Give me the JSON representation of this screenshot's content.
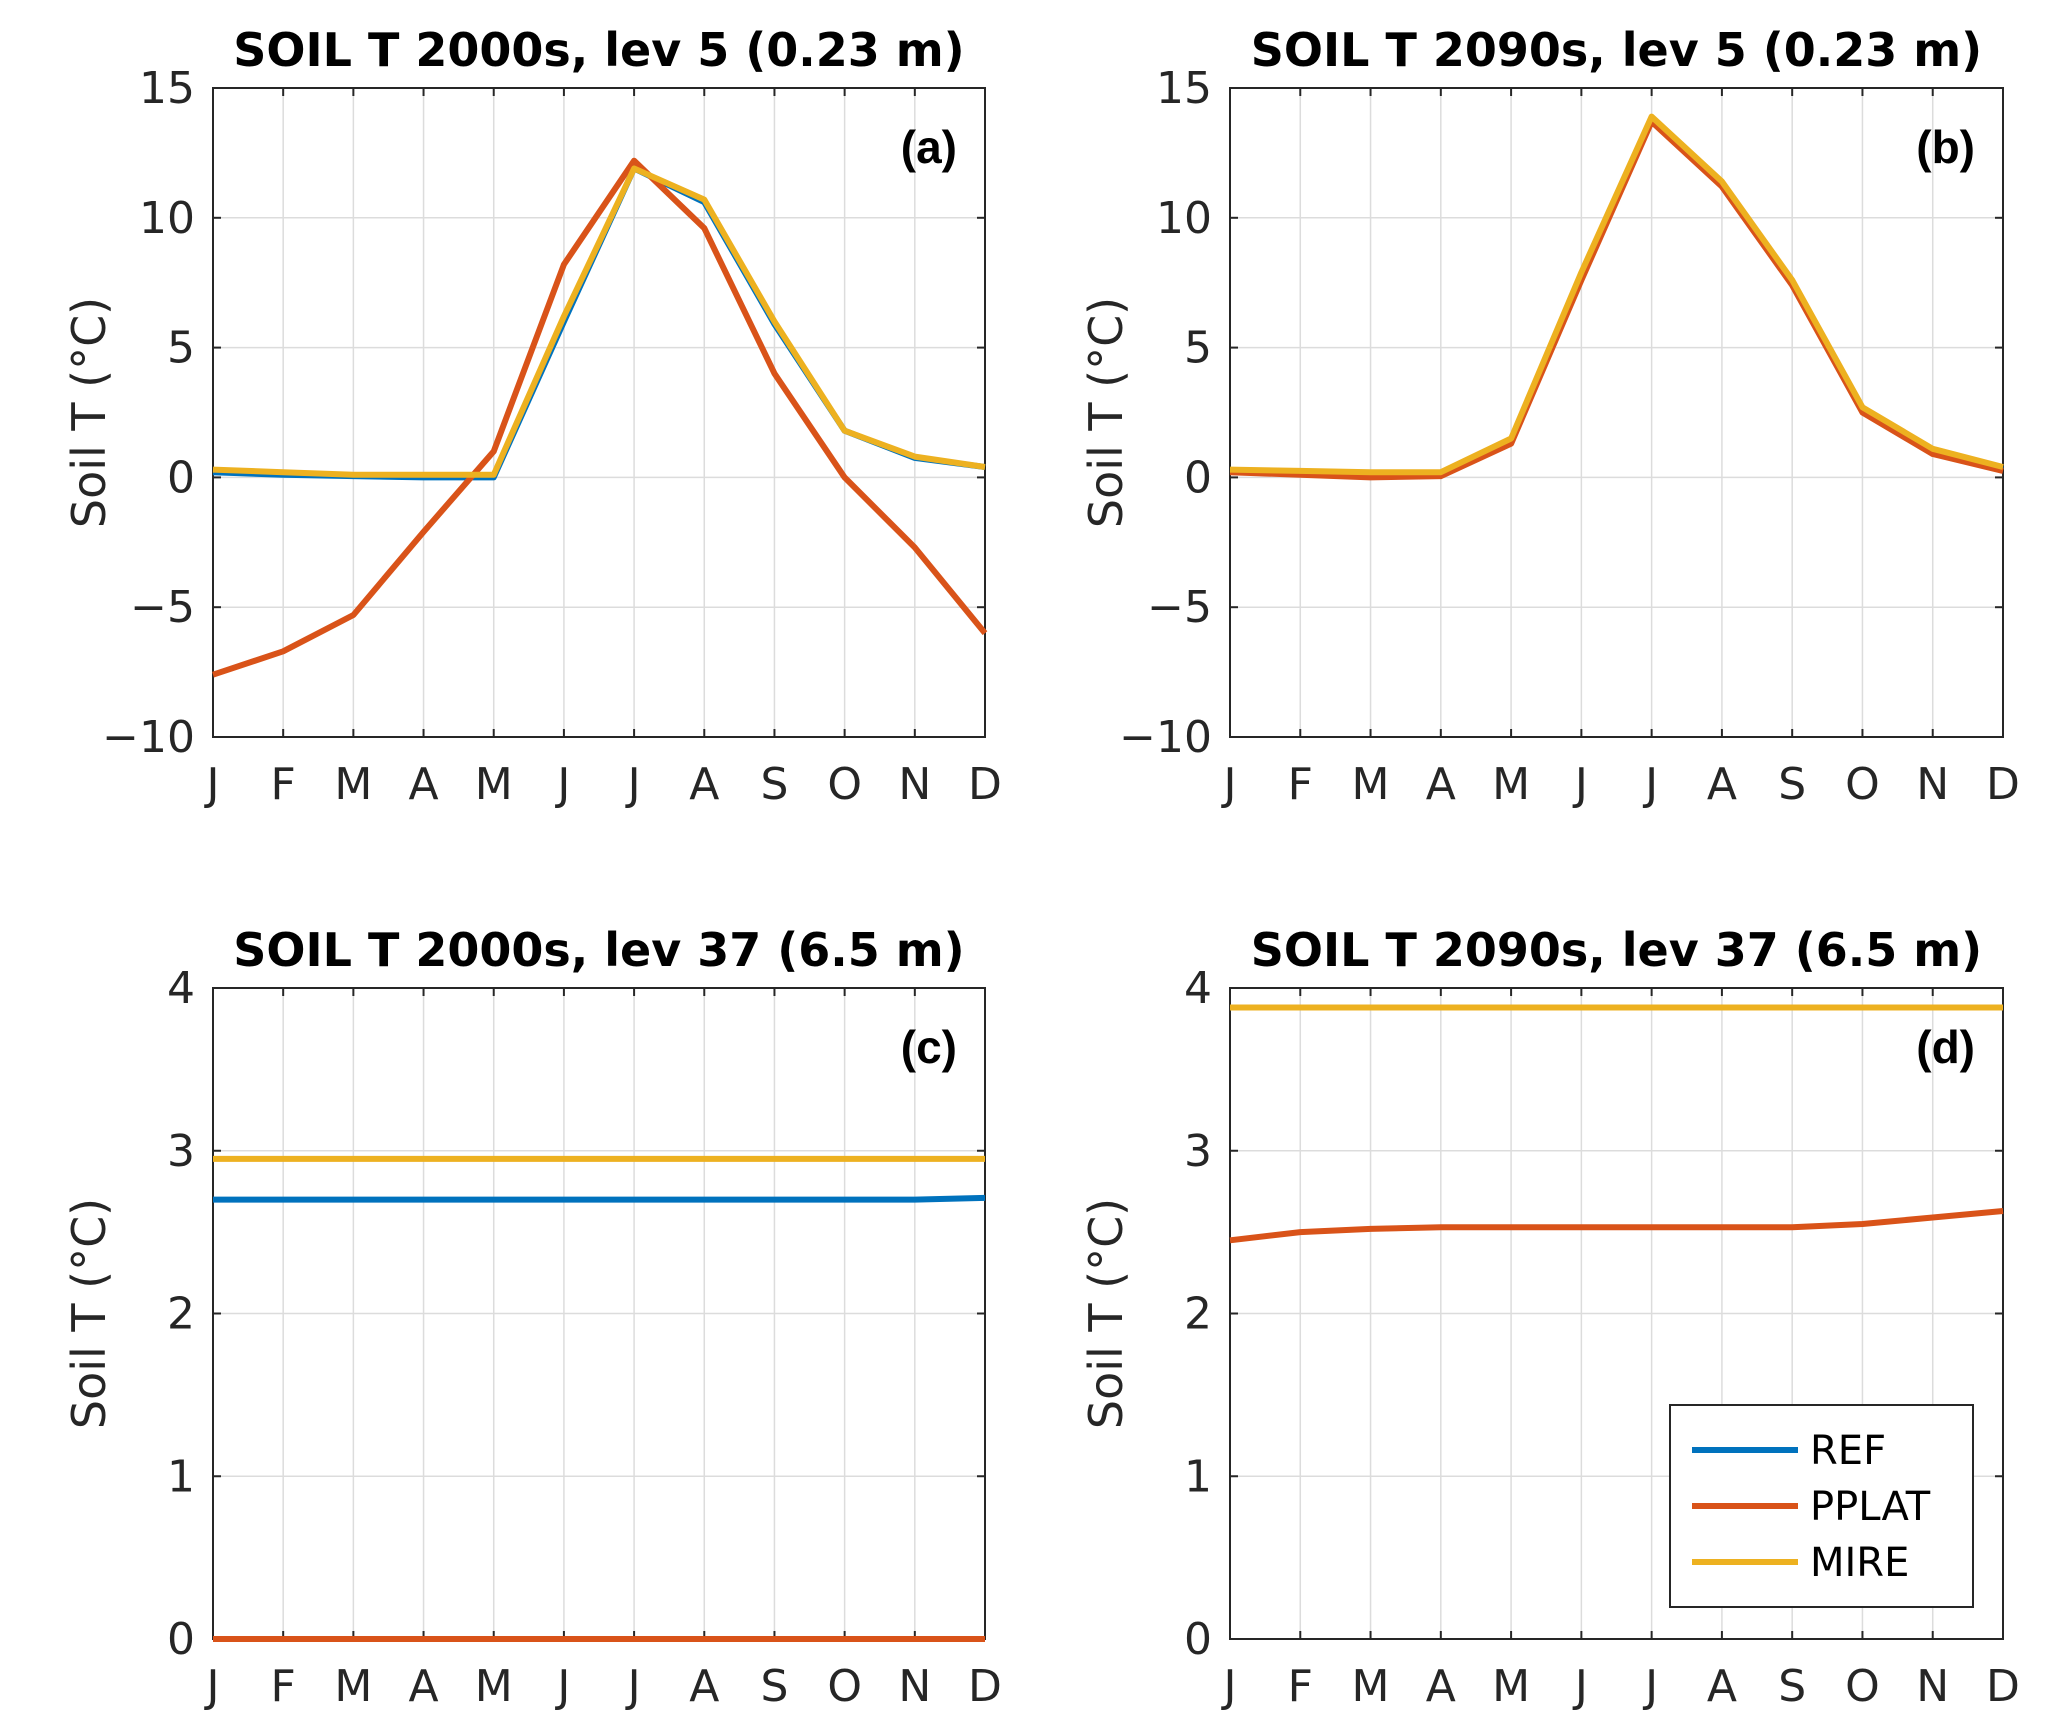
{
  "chart_data": [
    {
      "type": "line",
      "title": "SOIL T 2000s, lev 5 (0.23 m)",
      "panel_label": "(a)",
      "ylabel": "Soil T (°C)",
      "xlabel": "",
      "categories": [
        "J",
        "F",
        "M",
        "A",
        "M",
        "J",
        "J",
        "A",
        "S",
        "O",
        "N",
        "D"
      ],
      "ylim": [
        -10,
        15
      ],
      "yticks": [
        -10,
        -5,
        0,
        5,
        10,
        15
      ],
      "ytick_labels": [
        "−10",
        "−5",
        "0",
        "5",
        "10",
        "15"
      ],
      "grid": true,
      "series": [
        {
          "key": "REF",
          "color": "#0072BD",
          "values": [
            0.2,
            0.1,
            0.05,
            0.0,
            0.0,
            6.0,
            11.9,
            10.6,
            5.9,
            1.8,
            0.75,
            0.4
          ]
        },
        {
          "key": "PPLAT",
          "color": "#D95319",
          "values": [
            -7.6,
            -6.7,
            -5.3,
            -2.1,
            1.0,
            8.2,
            12.2,
            9.6,
            4.0,
            0.0,
            -2.7,
            -6.0
          ]
        },
        {
          "key": "MIRE",
          "color": "#EDB120",
          "values": [
            0.3,
            0.2,
            0.1,
            0.1,
            0.1,
            6.2,
            11.9,
            10.7,
            6.0,
            1.8,
            0.8,
            0.4
          ]
        }
      ]
    },
    {
      "type": "line",
      "title": "SOIL T 2090s, lev 5 (0.23 m)",
      "panel_label": "(b)",
      "ylabel": "Soil T (°C)",
      "xlabel": "",
      "categories": [
        "J",
        "F",
        "M",
        "A",
        "M",
        "J",
        "J",
        "A",
        "S",
        "O",
        "N",
        "D"
      ],
      "ylim": [
        -10,
        15
      ],
      "yticks": [
        -10,
        -5,
        0,
        5,
        10,
        15
      ],
      "ytick_labels": [
        "−10",
        "−5",
        "0",
        "5",
        "10",
        "15"
      ],
      "grid": true,
      "series": [
        {
          "key": "REF",
          "color": "#0072BD",
          "values": [
            0.25,
            0.2,
            0.15,
            0.15,
            1.4,
            7.8,
            13.8,
            11.3,
            7.5,
            2.6,
            1.0,
            0.3
          ]
        },
        {
          "key": "PPLAT",
          "color": "#D95319",
          "values": [
            0.2,
            0.1,
            0.0,
            0.05,
            1.3,
            7.6,
            13.7,
            11.2,
            7.4,
            2.5,
            0.9,
            0.25
          ]
        },
        {
          "key": "MIRE",
          "color": "#EDB120",
          "values": [
            0.3,
            0.25,
            0.2,
            0.2,
            1.5,
            7.9,
            13.9,
            11.4,
            7.6,
            2.7,
            1.1,
            0.4
          ]
        }
      ]
    },
    {
      "type": "line",
      "title": "SOIL T 2000s, lev 37 (6.5 m)",
      "panel_label": "(c)",
      "ylabel": "Soil T (°C)",
      "xlabel": "",
      "categories": [
        "J",
        "F",
        "M",
        "A",
        "M",
        "J",
        "J",
        "A",
        "S",
        "O",
        "N",
        "D"
      ],
      "ylim": [
        0,
        4
      ],
      "yticks": [
        0,
        1,
        2,
        3,
        4
      ],
      "ytick_labels": [
        "0",
        "1",
        "2",
        "3",
        "4"
      ],
      "grid": true,
      "series": [
        {
          "key": "REF",
          "color": "#0072BD",
          "values": [
            2.7,
            2.7,
            2.7,
            2.7,
            2.7,
            2.7,
            2.7,
            2.7,
            2.7,
            2.7,
            2.7,
            2.71
          ]
        },
        {
          "key": "PPLAT",
          "color": "#D95319",
          "values": [
            0,
            0,
            0,
            0,
            0,
            0,
            0,
            0,
            0,
            0,
            0,
            0
          ]
        },
        {
          "key": "MIRE",
          "color": "#EDB120",
          "values": [
            2.95,
            2.95,
            2.95,
            2.95,
            2.95,
            2.95,
            2.95,
            2.95,
            2.95,
            2.95,
            2.95,
            2.95
          ]
        }
      ]
    },
    {
      "type": "line",
      "title": "SOIL T 2090s, lev 37 (6.5 m)",
      "panel_label": "(d)",
      "ylabel": "Soil T (°C)",
      "xlabel": "",
      "categories": [
        "J",
        "F",
        "M",
        "A",
        "M",
        "J",
        "J",
        "A",
        "S",
        "O",
        "N",
        "D"
      ],
      "ylim": [
        0,
        4
      ],
      "yticks": [
        0,
        1,
        2,
        3,
        4
      ],
      "ytick_labels": [
        "0",
        "1",
        "2",
        "3",
        "4"
      ],
      "grid": true,
      "legend": {
        "position": "bottom-right",
        "entries": [
          {
            "name": "REF",
            "color": "#0072BD"
          },
          {
            "name": "PPLAT",
            "color": "#D95319"
          },
          {
            "name": "MIRE",
            "color": "#EDB120"
          }
        ]
      },
      "series": [
        {
          "key": "REF",
          "color": "#0072BD",
          "values": [
            3.88,
            3.88,
            3.88,
            3.88,
            3.88,
            3.88,
            3.88,
            3.88,
            3.88,
            3.88,
            3.88,
            3.88
          ]
        },
        {
          "key": "PPLAT",
          "color": "#D95319",
          "values": [
            2.45,
            2.5,
            2.52,
            2.53,
            2.53,
            2.53,
            2.53,
            2.53,
            2.53,
            2.55,
            2.59,
            2.63
          ]
        },
        {
          "key": "MIRE",
          "color": "#EDB120",
          "values": [
            3.88,
            3.88,
            3.88,
            3.88,
            3.88,
            3.88,
            3.88,
            3.88,
            3.88,
            3.88,
            3.88,
            3.88
          ]
        }
      ]
    }
  ]
}
